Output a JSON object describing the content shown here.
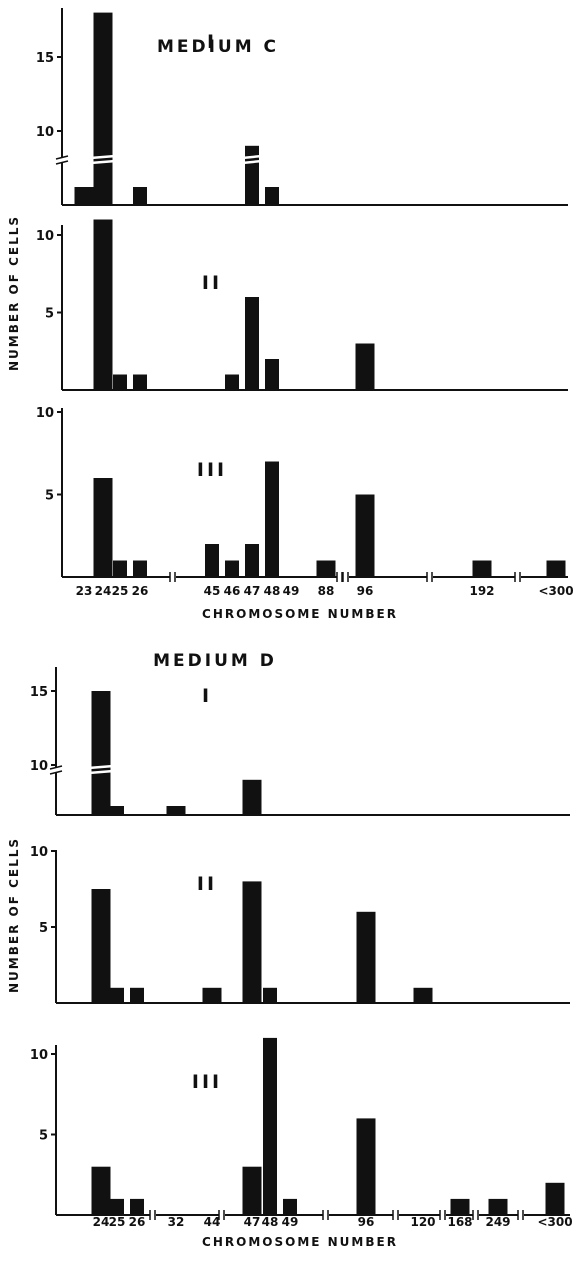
{
  "chart_data": [
    {
      "type": "bar",
      "title": "MEDIUM C",
      "ylabel": "NUMBER OF CELLS",
      "xlabel": "CHROMOSOME NUMBER",
      "x_tick_labels": [
        "23",
        "24",
        "25",
        "26",
        "45",
        "46",
        "47",
        "48",
        "49",
        "88",
        "96",
        "192",
        "<300"
      ],
      "panels": [
        {
          "label": "I",
          "ylim": [
            0,
            18
          ],
          "y_ticks": [
            10,
            15
          ],
          "axis_break": true,
          "bars": [
            {
              "x": "23",
              "value": 2
            },
            {
              "x": "24",
              "value": 18
            },
            {
              "x": "26",
              "value": 2
            },
            {
              "x": "47",
              "value": 9
            },
            {
              "x": "48",
              "value": 2
            }
          ]
        },
        {
          "label": "II",
          "ylim": [
            0,
            11
          ],
          "y_ticks": [
            5,
            10
          ],
          "axis_break": false,
          "bars": [
            {
              "x": "24",
              "value": 11
            },
            {
              "x": "25",
              "value": 1
            },
            {
              "x": "26",
              "value": 1
            },
            {
              "x": "46",
              "value": 1
            },
            {
              "x": "47",
              "value": 6
            },
            {
              "x": "48",
              "value": 2
            },
            {
              "x": "96",
              "value": 3
            }
          ]
        },
        {
          "label": "III",
          "ylim": [
            0,
            11
          ],
          "y_ticks": [
            5,
            10
          ],
          "axis_break": false,
          "bars": [
            {
              "x": "24",
              "value": 6
            },
            {
              "x": "25",
              "value": 1
            },
            {
              "x": "26",
              "value": 1
            },
            {
              "x": "45",
              "value": 2
            },
            {
              "x": "46",
              "value": 1
            },
            {
              "x": "47",
              "value": 2
            },
            {
              "x": "48",
              "value": 7
            },
            {
              "x": "88",
              "value": 1
            },
            {
              "x": "96",
              "value": 5
            },
            {
              "x": "192",
              "value": 1
            },
            {
              "x": "<300",
              "value": 1
            }
          ]
        }
      ]
    },
    {
      "type": "bar",
      "title": "MEDIUM D",
      "ylabel": "NUMBER OF CELLS",
      "xlabel": "CHROMOSOME NUMBER",
      "x_tick_labels": [
        "24",
        "25",
        "26",
        "32",
        "44",
        "47",
        "48",
        "49",
        "96",
        "120",
        "168",
        "249",
        "<300"
      ],
      "panels": [
        {
          "label": "I",
          "ylim": [
            0,
            15
          ],
          "y_ticks": [
            10,
            15
          ],
          "axis_break": true,
          "bars": [
            {
              "x": "24",
              "value": 15
            },
            {
              "x": "25",
              "value": 1
            },
            {
              "x": "32",
              "value": 1
            },
            {
              "x": "47",
              "value": 9
            }
          ]
        },
        {
          "label": "II",
          "ylim": [
            0,
            11
          ],
          "y_ticks": [
            5,
            10
          ],
          "axis_break": false,
          "bars": [
            {
              "x": "24",
              "value": 7.5
            },
            {
              "x": "25",
              "value": 1
            },
            {
              "x": "26",
              "value": 1
            },
            {
              "x": "44",
              "value": 1
            },
            {
              "x": "47",
              "value": 8
            },
            {
              "x": "48",
              "value": 1
            },
            {
              "x": "96",
              "value": 6
            },
            {
              "x": "120",
              "value": 1
            }
          ]
        },
        {
          "label": "III",
          "ylim": [
            0,
            11
          ],
          "y_ticks": [
            5,
            10
          ],
          "axis_break": false,
          "bars": [
            {
              "x": "24",
              "value": 3
            },
            {
              "x": "25",
              "value": 1
            },
            {
              "x": "26",
              "value": 1
            },
            {
              "x": "47",
              "value": 3
            },
            {
              "x": "48",
              "value": 11
            },
            {
              "x": "49",
              "value": 1
            },
            {
              "x": "96",
              "value": 6
            },
            {
              "x": "168",
              "value": 1
            },
            {
              "x": "249",
              "value": 1
            },
            {
              "x": "<300",
              "value": 2
            }
          ]
        }
      ]
    }
  ]
}
